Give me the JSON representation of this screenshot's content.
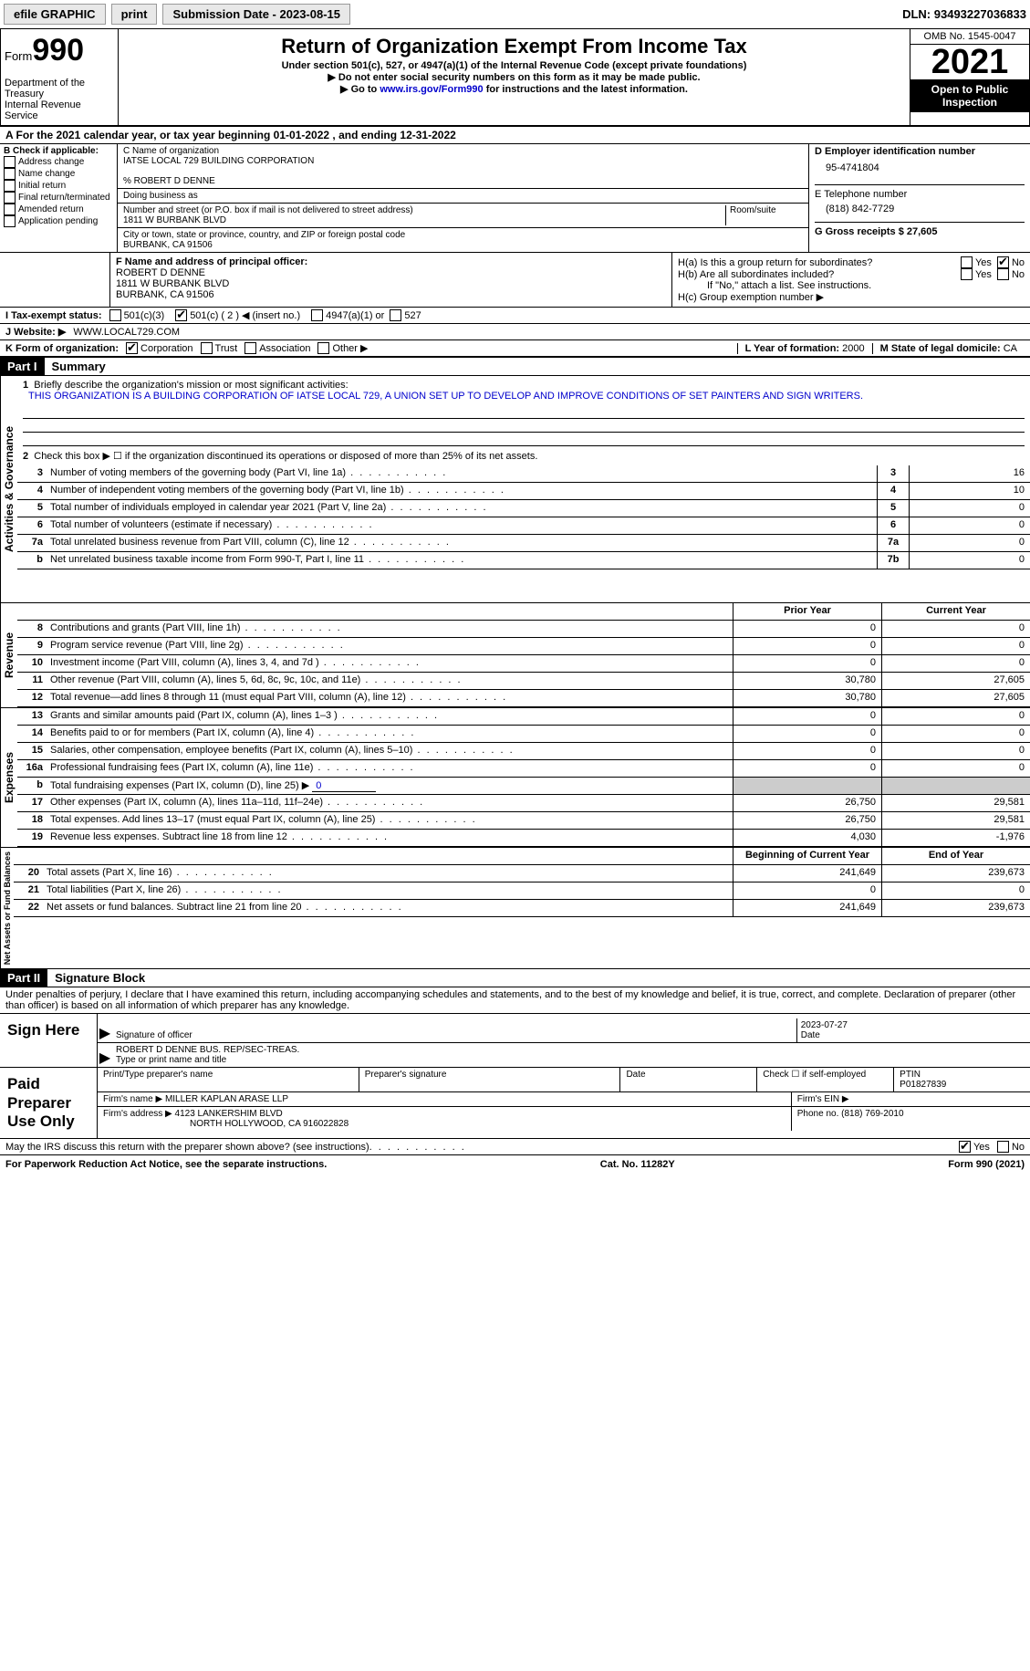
{
  "topbar": {
    "efile": "efile GRAPHIC",
    "print": "print",
    "submission_label": "Submission Date - ",
    "submission_date": "2023-08-15",
    "dln_label": "DLN: ",
    "dln": "93493227036833"
  },
  "header": {
    "form_word": "Form",
    "form_number": "990",
    "dept": "Department of the Treasury",
    "irs": "Internal Revenue Service",
    "title": "Return of Organization Exempt From Income Tax",
    "subtitle": "Under section 501(c), 527, or 4947(a)(1) of the Internal Revenue Code (except private foundations)",
    "note1": "▶ Do not enter social security numbers on this form as it may be made public.",
    "note2_pre": "▶ Go to ",
    "note2_link": "www.irs.gov/Form990",
    "note2_post": " for instructions and the latest information.",
    "omb": "OMB No. 1545-0047",
    "year": "2021",
    "open": "Open to Public Inspection"
  },
  "period": {
    "line_pre": "A For the 2021 calendar year, or tax year beginning ",
    "begin": "01-01-2022",
    "mid": " , and ending ",
    "end": "12-31-2022"
  },
  "blockB": {
    "label": "B Check if applicable:",
    "opts": [
      "Address change",
      "Name change",
      "Initial return",
      "Final return/terminated",
      "Amended return",
      "Application pending"
    ]
  },
  "blockC": {
    "name_label": "C Name of organization",
    "name": "IATSE LOCAL 729 BUILDING CORPORATION",
    "care_of": "% ROBERT D DENNE",
    "dba_label": "Doing business as",
    "street_label": "Number and street (or P.O. box if mail is not delivered to street address)",
    "room_label": "Room/suite",
    "street": "1811 W BURBANK BLVD",
    "city_label": "City or town, state or province, country, and ZIP or foreign postal code",
    "city": "BURBANK, CA  91506"
  },
  "blockD": {
    "ein_label": "D Employer identification number",
    "ein": "95-4741804",
    "phone_label": "E Telephone number",
    "phone": "(818) 842-7729",
    "gross_label": "G Gross receipts $ ",
    "gross": "27,605"
  },
  "blockF": {
    "label": "F Name and address of principal officer:",
    "name": "ROBERT D DENNE",
    "street": "1811 W BURBANK BLVD",
    "city": "BURBANK, CA  91506"
  },
  "blockH": {
    "ha": "H(a)  Is this a group return for subordinates?",
    "hb": "H(b)  Are all subordinates included?",
    "hb_note": "If \"No,\" attach a list. See instructions.",
    "hc": "H(c)  Group exemption number ▶",
    "yes": "Yes",
    "no": "No"
  },
  "blockI": {
    "label": "I   Tax-exempt status:",
    "o1": "501(c)(3)",
    "o2": "501(c) ( 2 ) ◀ (insert no.)",
    "o3": "4947(a)(1) or",
    "o4": "527"
  },
  "blockJ": {
    "label": "J   Website: ▶",
    "value": "WWW.LOCAL729.COM"
  },
  "blockK": {
    "label": "K Form of organization:",
    "o1": "Corporation",
    "o2": "Trust",
    "o3": "Association",
    "o4": "Other ▶"
  },
  "blockL": {
    "label": "L Year of formation: ",
    "value": "2000"
  },
  "blockM": {
    "label": "M State of legal domicile: ",
    "value": "CA"
  },
  "part1": {
    "header": "Part I",
    "title": "Summary",
    "line1_label": "Briefly describe the organization's mission or most significant activities:",
    "mission": "THIS ORGANIZATION IS A BUILDING CORPORATION OF IATSE LOCAL 729, A UNION SET UP TO DEVELOP AND IMPROVE CONDITIONS OF SET PAINTERS AND SIGN WRITERS.",
    "line2": "Check this box ▶ ☐ if the organization discontinued its operations or disposed of more than 25% of its net assets.",
    "vert_ag": "Activities & Governance",
    "vert_rev": "Revenue",
    "vert_exp": "Expenses",
    "vert_na": "Net Assets or Fund Balances",
    "prior_header": "Prior Year",
    "current_header": "Current Year",
    "begin_header": "Beginning of Current Year",
    "end_header": "End of Year",
    "lines_ag": [
      {
        "n": "3",
        "t": "Number of voting members of the governing body (Part VI, line 1a)",
        "box": "3",
        "v": "16"
      },
      {
        "n": "4",
        "t": "Number of independent voting members of the governing body (Part VI, line 1b)",
        "box": "4",
        "v": "10"
      },
      {
        "n": "5",
        "t": "Total number of individuals employed in calendar year 2021 (Part V, line 2a)",
        "box": "5",
        "v": "0"
      },
      {
        "n": "6",
        "t": "Total number of volunteers (estimate if necessary)",
        "box": "6",
        "v": "0"
      },
      {
        "n": "7a",
        "t": "Total unrelated business revenue from Part VIII, column (C), line 12",
        "box": "7a",
        "v": "0"
      },
      {
        "n": "b",
        "t": "Net unrelated business taxable income from Form 990-T, Part I, line 11",
        "box": "7b",
        "v": "0"
      }
    ],
    "lines_rev": [
      {
        "n": "8",
        "t": "Contributions and grants (Part VIII, line 1h)",
        "p": "0",
        "c": "0"
      },
      {
        "n": "9",
        "t": "Program service revenue (Part VIII, line 2g)",
        "p": "0",
        "c": "0"
      },
      {
        "n": "10",
        "t": "Investment income (Part VIII, column (A), lines 3, 4, and 7d )",
        "p": "0",
        "c": "0"
      },
      {
        "n": "11",
        "t": "Other revenue (Part VIII, column (A), lines 5, 6d, 8c, 9c, 10c, and 11e)",
        "p": "30,780",
        "c": "27,605"
      },
      {
        "n": "12",
        "t": "Total revenue—add lines 8 through 11 (must equal Part VIII, column (A), line 12)",
        "p": "30,780",
        "c": "27,605"
      }
    ],
    "lines_exp": [
      {
        "n": "13",
        "t": "Grants and similar amounts paid (Part IX, column (A), lines 1–3 )",
        "p": "0",
        "c": "0"
      },
      {
        "n": "14",
        "t": "Benefits paid to or for members (Part IX, column (A), line 4)",
        "p": "0",
        "c": "0"
      },
      {
        "n": "15",
        "t": "Salaries, other compensation, employee benefits (Part IX, column (A), lines 5–10)",
        "p": "0",
        "c": "0"
      },
      {
        "n": "16a",
        "t": "Professional fundraising fees (Part IX, column (A), line 11e)",
        "p": "0",
        "c": "0"
      },
      {
        "n": "b",
        "t": "Total fundraising expenses (Part IX, column (D), line 25) ▶",
        "sub": "0",
        "shaded": true
      },
      {
        "n": "17",
        "t": "Other expenses (Part IX, column (A), lines 11a–11d, 11f–24e)",
        "p": "26,750",
        "c": "29,581"
      },
      {
        "n": "18",
        "t": "Total expenses. Add lines 13–17 (must equal Part IX, column (A), line 25)",
        "p": "26,750",
        "c": "29,581"
      },
      {
        "n": "19",
        "t": "Revenue less expenses. Subtract line 18 from line 12",
        "p": "4,030",
        "c": "-1,976"
      }
    ],
    "lines_na": [
      {
        "n": "20",
        "t": "Total assets (Part X, line 16)",
        "p": "241,649",
        "c": "239,673"
      },
      {
        "n": "21",
        "t": "Total liabilities (Part X, line 26)",
        "p": "0",
        "c": "0"
      },
      {
        "n": "22",
        "t": "Net assets or fund balances. Subtract line 21 from line 20",
        "p": "241,649",
        "c": "239,673"
      }
    ]
  },
  "part2": {
    "header": "Part II",
    "title": "Signature Block",
    "penalty": "Under penalties of perjury, I declare that I have examined this return, including accompanying schedules and statements, and to the best of my knowledge and belief, it is true, correct, and complete. Declaration of preparer (other than officer) is based on all information of which preparer has any knowledge.",
    "sign_here": "Sign Here",
    "sig_officer": "Signature of officer",
    "sig_date_label": "Date",
    "sig_date": "2023-07-27",
    "officer_name": "ROBERT D DENNE BUS. REP/SEC-TREAS.",
    "type_name": "Type or print name and title",
    "paid_prep": "Paid Preparer Use Only",
    "prep_name_label": "Print/Type preparer's name",
    "prep_sig_label": "Preparer's signature",
    "date_label": "Date",
    "check_if": "Check ☐ if self-employed",
    "ptin_label": "PTIN",
    "ptin": "P01827839",
    "firm_name_label": "Firm's name    ▶ ",
    "firm_name": "MILLER KAPLAN ARASE LLP",
    "firm_ein_label": "Firm's EIN ▶",
    "firm_addr_label": "Firm's address ▶ ",
    "firm_addr1": "4123 LANKERSHIM BLVD",
    "firm_addr2": "NORTH HOLLYWOOD, CA  916022828",
    "firm_phone_label": "Phone no. ",
    "firm_phone": "(818) 769-2010",
    "discuss": "May the IRS discuss this return with the preparer shown above? (see instructions)",
    "yes": "Yes",
    "no": "No"
  },
  "footer": {
    "pra": "For Paperwork Reduction Act Notice, see the separate instructions.",
    "cat": "Cat. No. 11282Y",
    "form": "Form 990 (2021)"
  }
}
